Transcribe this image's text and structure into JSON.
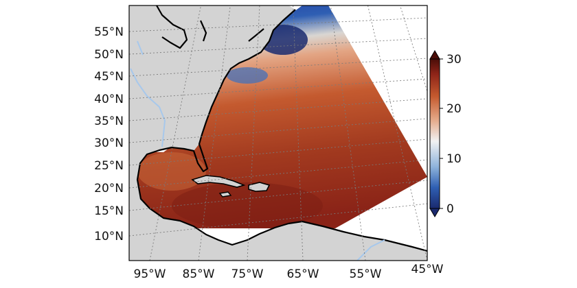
{
  "map": {
    "title": "",
    "lat_labels": [
      "55°N",
      "50°N",
      "45°N",
      "40°N",
      "35°N",
      "30°N",
      "25°N",
      "20°N",
      "15°N",
      "10°N"
    ],
    "lon_labels": [
      "95°W",
      "85°W",
      "75°W",
      "65°W",
      "55°W",
      "45°W"
    ],
    "extent": {
      "lon_min": -95,
      "lon_max": -45,
      "lat_min": 5,
      "lat_max": 60
    }
  },
  "colorbar": {
    "ticks": [
      "0",
      "10",
      "20",
      "30"
    ],
    "range": [
      0,
      30
    ],
    "colors": [
      "#1a2a6e",
      "#2f5fb3",
      "#8fb4dc",
      "#f2f2f2",
      "#e3a584",
      "#c45a2f",
      "#8e2418",
      "#4a0d08"
    ]
  },
  "colors": {
    "land": "#d3d3d3",
    "ocean_background": "#ffffff",
    "coastline": "#000000",
    "gridline": "#7a7a7a",
    "river": "#a7c8ec"
  }
}
